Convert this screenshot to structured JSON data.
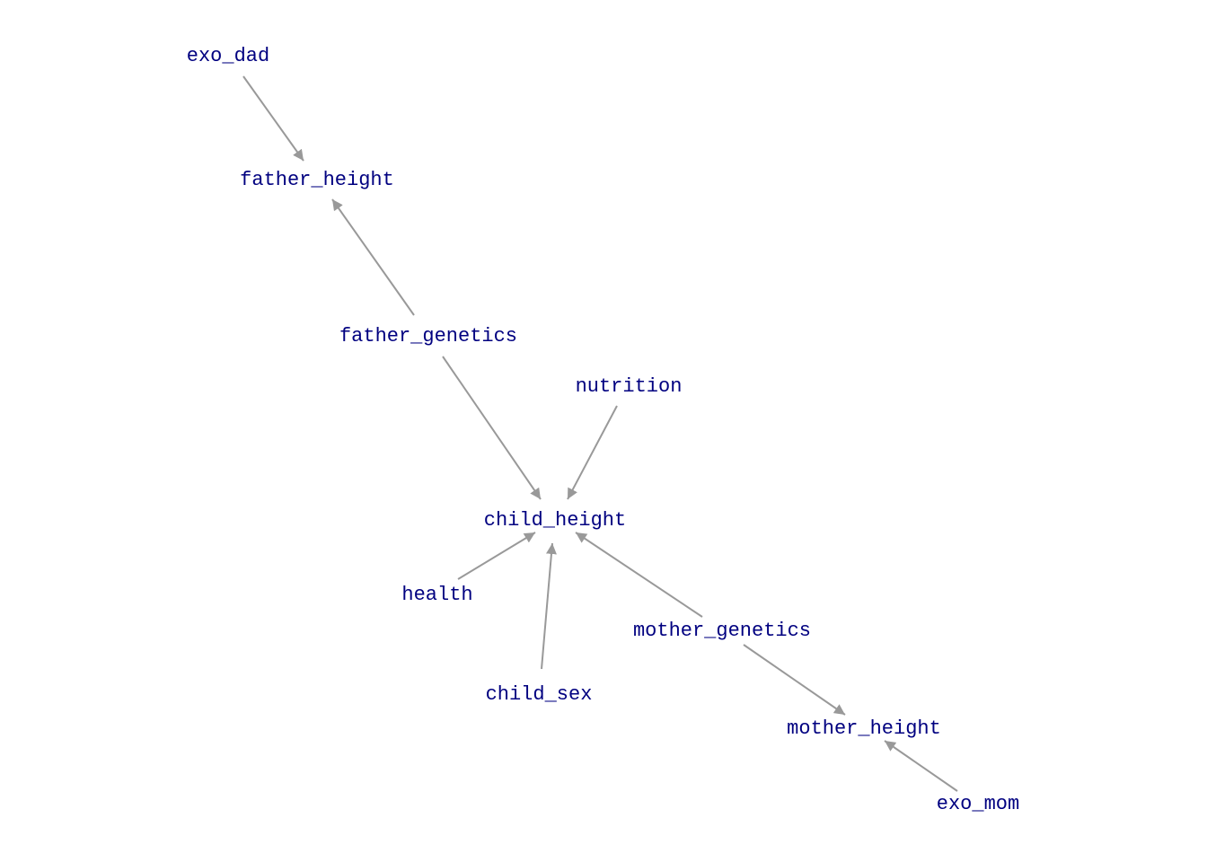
{
  "diagram": {
    "nodes": [
      {
        "id": "exo_dad",
        "label": "exo_dad"
      },
      {
        "id": "father_height",
        "label": "father_height"
      },
      {
        "id": "father_genetics",
        "label": "father_genetics"
      },
      {
        "id": "nutrition",
        "label": "nutrition"
      },
      {
        "id": "child_height",
        "label": "child_height"
      },
      {
        "id": "health",
        "label": "health"
      },
      {
        "id": "mother_genetics",
        "label": "mother_genetics"
      },
      {
        "id": "child_sex",
        "label": "child_sex"
      },
      {
        "id": "mother_height",
        "label": "mother_height"
      },
      {
        "id": "exo_mom",
        "label": "exo_mom"
      }
    ],
    "edges": [
      {
        "from": "exo_dad",
        "to": "father_height"
      },
      {
        "from": "father_genetics",
        "to": "father_height"
      },
      {
        "from": "father_genetics",
        "to": "child_height"
      },
      {
        "from": "nutrition",
        "to": "child_height"
      },
      {
        "from": "health",
        "to": "child_height"
      },
      {
        "from": "child_sex",
        "to": "child_height"
      },
      {
        "from": "mother_genetics",
        "to": "child_height"
      },
      {
        "from": "mother_genetics",
        "to": "mother_height"
      },
      {
        "from": "exo_mom",
        "to": "mother_height"
      }
    ],
    "colors": {
      "node_text": "#000080",
      "edge": "#999999",
      "background": "#ffffff"
    }
  }
}
